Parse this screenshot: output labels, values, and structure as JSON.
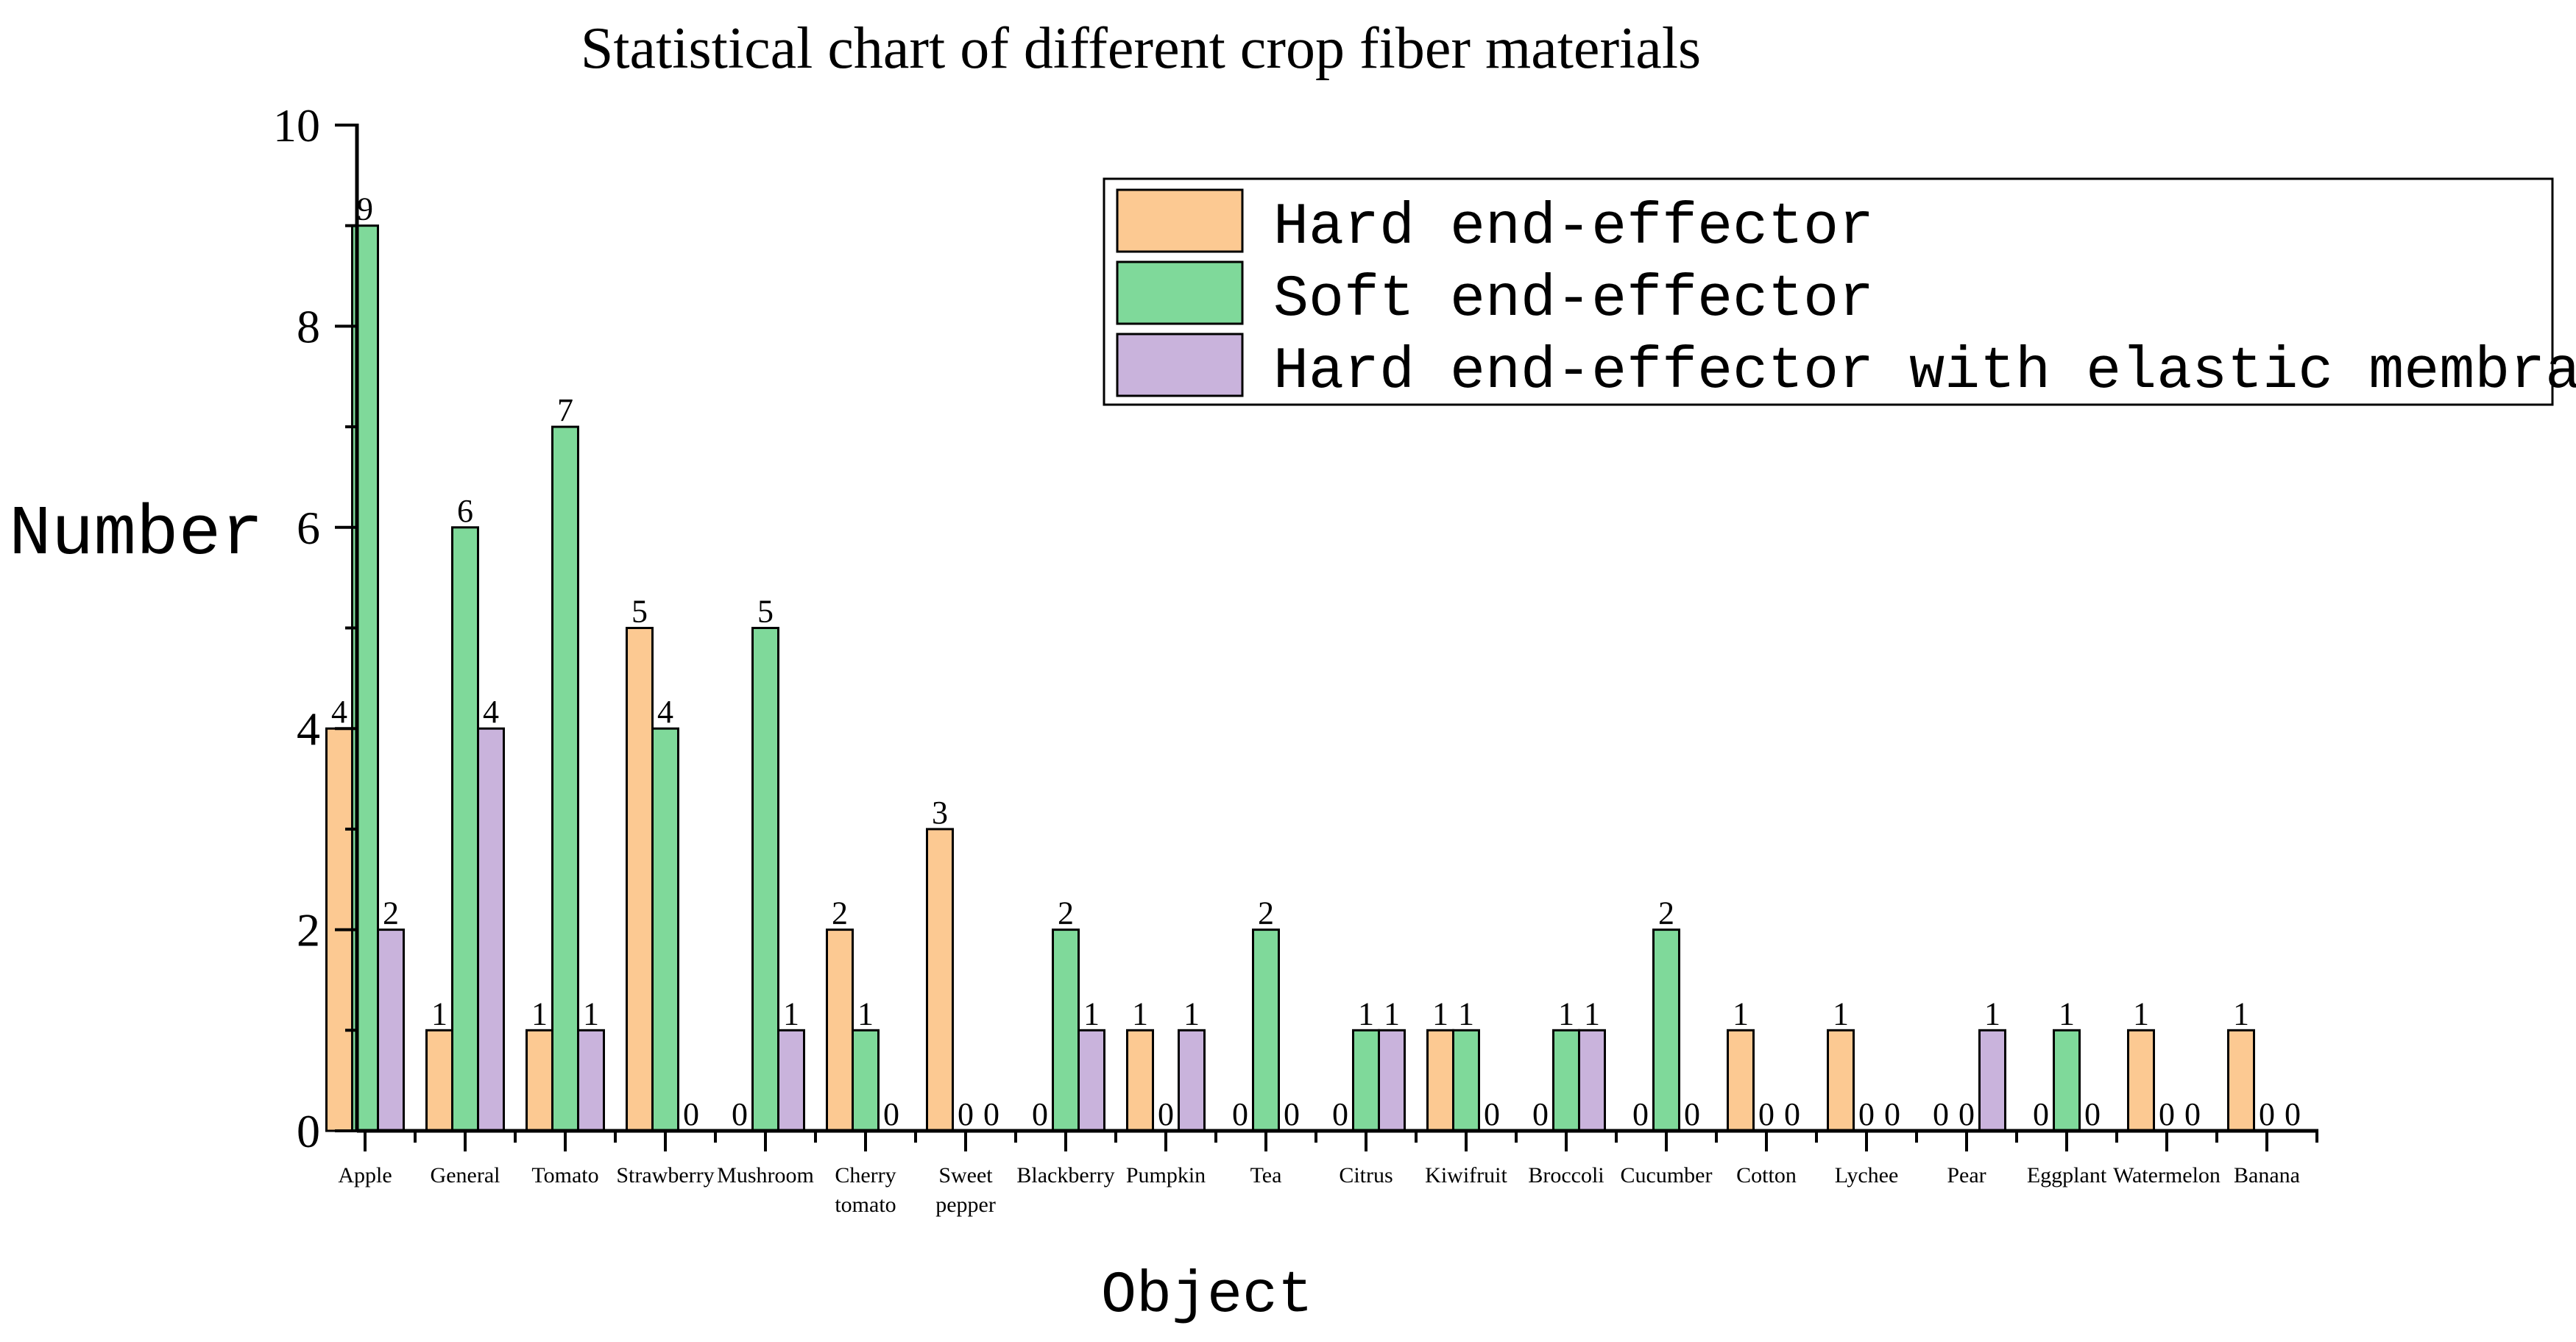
{
  "chart_data": {
    "type": "bar",
    "title": "Statistical chart of different crop fiber materials",
    "xlabel": "Object",
    "ylabel": "Number",
    "ylim": [
      0,
      10
    ],
    "yticks": [
      0,
      2,
      4,
      6,
      8,
      10
    ],
    "grid": false,
    "legend_position": "top-right",
    "categories": [
      "Apple",
      "General",
      "Tomato",
      "Strawberry",
      "Mushroom",
      "Cherry tomato",
      "Sweet pepper",
      "Blackberry",
      "Pumpkin",
      "Tea",
      "Citrus",
      "Kiwifruit",
      "Broccoli",
      "Cucumber",
      "Cotton",
      "Lychee",
      "Pear",
      "Eggplant",
      "Watermelon",
      "Banana"
    ],
    "series": [
      {
        "name": "Hard end-effector",
        "color": "#FCC992",
        "values": [
          4,
          1,
          1,
          5,
          0,
          2,
          3,
          0,
          1,
          0,
          0,
          1,
          0,
          0,
          1,
          1,
          0,
          0,
          1,
          1
        ]
      },
      {
        "name": "Soft end-effector",
        "color": "#7FD99A",
        "values": [
          9,
          6,
          7,
          4,
          5,
          1,
          0,
          2,
          0,
          2,
          1,
          1,
          1,
          2,
          0,
          0,
          0,
          1,
          0,
          0
        ]
      },
      {
        "name": "Hard end-effector with elastic membrane",
        "color": "#C9B3DC",
        "values": [
          2,
          4,
          1,
          0,
          1,
          0,
          0,
          1,
          1,
          0,
          1,
          0,
          1,
          0,
          0,
          0,
          1,
          0,
          0,
          0
        ]
      }
    ]
  }
}
